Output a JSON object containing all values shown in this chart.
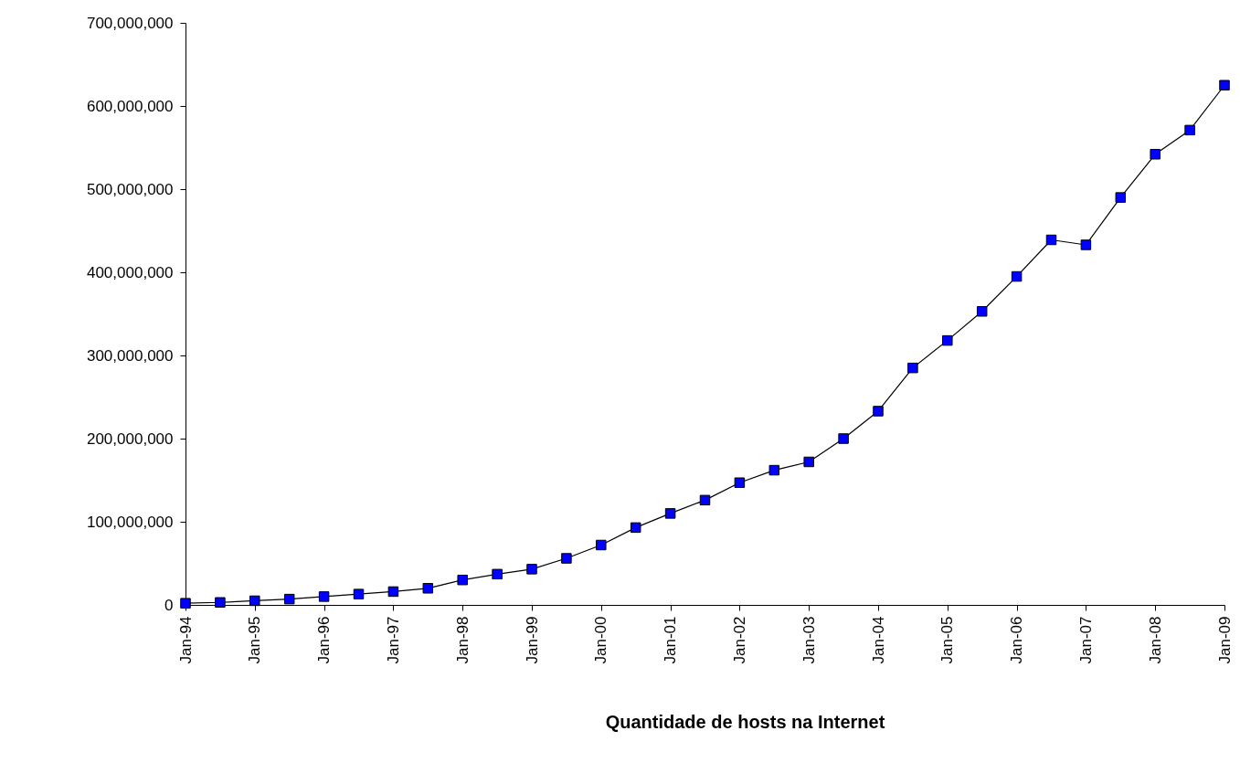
{
  "chart_data": {
    "type": "line",
    "xlabel": "Quantidade de hosts na Internet",
    "categories": [
      "Jan-94",
      null,
      "Jan-95",
      null,
      "Jan-96",
      null,
      "Jan-97",
      null,
      "Jan-98",
      null,
      "Jan-99",
      null,
      "Jan-00",
      null,
      "Jan-01",
      null,
      "Jan-02",
      null,
      "Jan-03",
      null,
      "Jan-04",
      null,
      "Jan-05",
      null,
      "Jan-06",
      null,
      "Jan-07",
      null,
      "Jan-08",
      null,
      "Jan-09"
    ],
    "series": [
      {
        "color": "#0000ff",
        "values": [
          2000000,
          3000000,
          5000000,
          7000000,
          10000000,
          13000000,
          16000000,
          20000000,
          30000000,
          37000000,
          43000000,
          56000000,
          72000000,
          93000000,
          110000000,
          126000000,
          147000000,
          162000000,
          172000000,
          200000000,
          233000000,
          285000000,
          318000000,
          353000000,
          395000000,
          439000000,
          433000000,
          490000000,
          542000000,
          571000000,
          625000000
        ]
      }
    ],
    "ylim": [
      0,
      700000000
    ],
    "yticks": [
      0,
      {
        "value": 100000000,
        "label": "100,000,000"
      },
      {
        "value": 200000000,
        "label": "200,000,000"
      },
      {
        "value": 300000000,
        "label": "300,000,000"
      },
      {
        "value": 400000000,
        "label": "400,000,000"
      },
      {
        "value": 500000000,
        "label": "500,000,000"
      },
      {
        "value": 600000000,
        "label": "600,000,000"
      },
      {
        "value": 700000000,
        "label": "700,000,000"
      }
    ],
    "marker": "square",
    "line_style": "solid"
  }
}
